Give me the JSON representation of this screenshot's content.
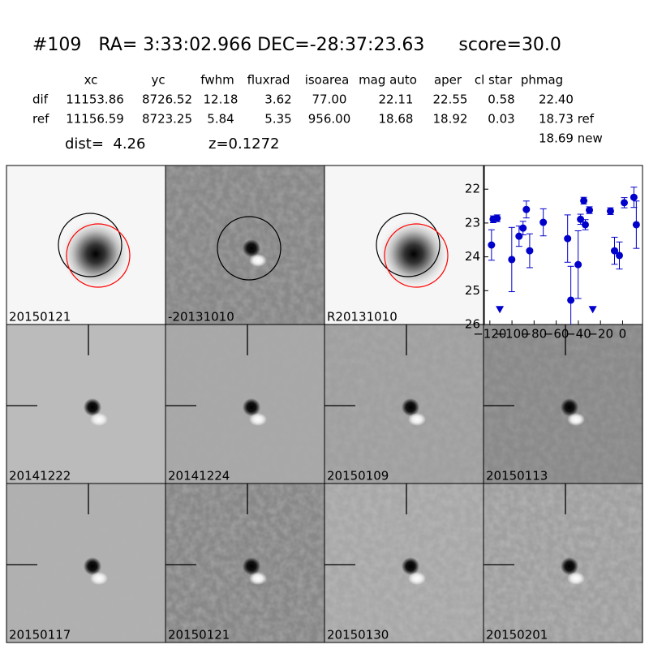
{
  "header": {
    "title": "#109   RA= 3:33:02.966 DEC=-28:37:23.63      score=30.0",
    "columns": [
      "xc",
      "yc",
      "fwhm",
      "fluxrad",
      "isoarea",
      "mag auto",
      "aper",
      "cl star",
      "phmag"
    ],
    "rows": [
      [
        "dif",
        "11153.86",
        "8726.52",
        "12.18",
        "3.62",
        "77.00",
        "22.11",
        "22.55",
        "0.58",
        "22.40"
      ],
      [
        "ref",
        "11156.59",
        "8723.25",
        "5.84",
        "5.35",
        "956.00",
        "18.68",
        "18.92",
        "0.03",
        "18.73 ref"
      ]
    ],
    "extra": "18.69 new",
    "dist": "dist=  4.26",
    "z": "z=0.1272"
  },
  "panels": [
    {
      "label": "20150121"
    },
    {
      "label": "-20131010"
    },
    {
      "label": "R20131010"
    },
    {
      "label": "20141222"
    },
    {
      "label": "20141224"
    },
    {
      "label": "20150109"
    },
    {
      "label": "20150113"
    },
    {
      "label": "20150117"
    },
    {
      "label": "20150121",
      "label_color": "#ff0000"
    },
    {
      "label": "20150130"
    },
    {
      "label": "20150201"
    }
  ],
  "chart_data": {
    "type": "scatter",
    "color": "#0000cc",
    "x": [
      -118.5,
      -117,
      -113.4,
      -100.2,
      -93.6,
      -90,
      -87,
      -84,
      -71.7,
      -49.7,
      -46.8,
      -40.2,
      -38,
      -35.1,
      -33.7,
      -30,
      -11,
      -7.3,
      -2.9,
      1.5,
      10.2,
      12.4
    ],
    "values": [
      23.65,
      22.89,
      22.86,
      24.08,
      23.39,
      23.15,
      22.6,
      23.82,
      22.98,
      23.46,
      25.28,
      24.23,
      22.89,
      22.34,
      23.05,
      22.62,
      22.65,
      23.82,
      23.96,
      22.4,
      22.24,
      23.05
    ],
    "errors": [
      0.45,
      0.1,
      0.1,
      0.95,
      0.3,
      0.2,
      0.25,
      0.5,
      0.4,
      0.7,
      1.0,
      1.0,
      0.15,
      0.1,
      0.15,
      0.1,
      0.1,
      0.4,
      0.4,
      0.15,
      0.3,
      0.7
    ],
    "limits": {
      "x": [
        -111,
        -27
      ],
      "values": [
        25.55,
        25.55
      ]
    },
    "xlim": [
      -125,
      18
    ],
    "ylim": [
      26,
      21.3
    ],
    "xticks": [
      {
        "value": -120,
        "label": "−120"
      },
      {
        "value": -100,
        "label": "−100"
      },
      {
        "value": -80,
        "label": "−80"
      },
      {
        "value": -60,
        "label": "−60"
      },
      {
        "value": -40,
        "label": "−40"
      },
      {
        "value": -20,
        "label": "−20"
      },
      0
    ],
    "yticks": [
      22,
      23,
      24,
      25,
      26
    ]
  }
}
